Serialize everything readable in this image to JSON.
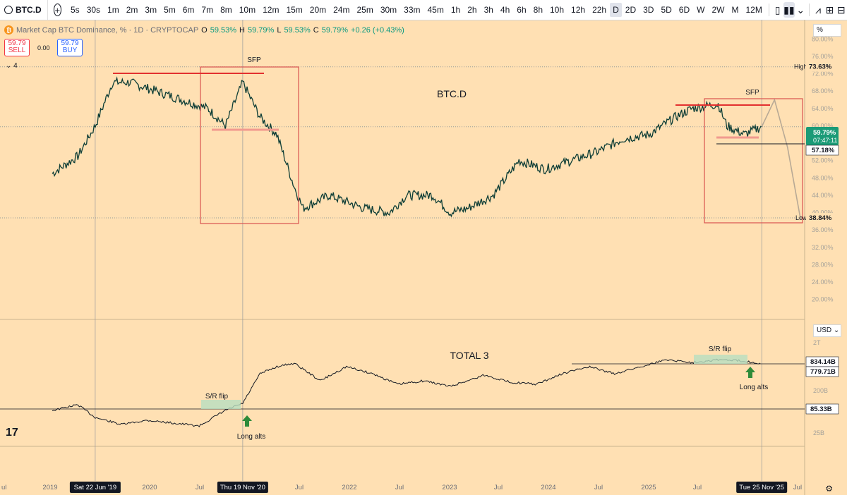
{
  "toolbar": {
    "symbol": "BTC.D",
    "intervals": [
      "5s",
      "30s",
      "1m",
      "2m",
      "3m",
      "5m",
      "6m",
      "7m",
      "8m",
      "10m",
      "12m",
      "15m",
      "20m",
      "24m",
      "25m",
      "30m",
      "33m",
      "45m",
      "1h",
      "2h",
      "3h",
      "4h",
      "6h",
      "8h",
      "10h",
      "12h",
      "22h",
      "D",
      "2D",
      "3D",
      "5D",
      "6D",
      "W",
      "2W",
      "M",
      "12M"
    ],
    "active_interval": "D"
  },
  "legend": {
    "icon": "₿",
    "title": "Market Cap BTC Dominance, % · 1D · CRYPTOCAP",
    "o_label": "O",
    "o_value": "59.53%",
    "h_label": "H",
    "h_value": "59.79%",
    "l_label": "L",
    "l_value": "59.53%",
    "c_label": "C",
    "c_value": "59.79%",
    "change": "+0.26 (+0.43%)"
  },
  "trade": {
    "sell_price": "59.79",
    "sell_label": "SELL",
    "buy_price": "59.79",
    "buy_label": "BUY",
    "spread": "0.00",
    "indicators_collapsed": "4"
  },
  "scale_selectors": {
    "percent": "%",
    "currency": "USD"
  },
  "chart_data": [
    {
      "type": "line",
      "symbol": "BTC.D",
      "annotation_label": "BTC.D",
      "unit": "%",
      "x": [
        "2019-01",
        "2019-04",
        "2019-06",
        "2019-08",
        "2019-10",
        "2020-01",
        "2020-04",
        "2020-07",
        "2020-09",
        "2020-11",
        "2021-01",
        "2021-03",
        "2021-05",
        "2021-06",
        "2021-09",
        "2022-01",
        "2022-04",
        "2022-06",
        "2022-09",
        "2022-11",
        "2023-01",
        "2023-04",
        "2023-07",
        "2023-10",
        "2024-01",
        "2024-04",
        "2024-07",
        "2024-10",
        "2025-01",
        "2025-03",
        "2025-06",
        "2025-07",
        "2025-09",
        "2025-11"
      ],
      "y": [
        49,
        53,
        60,
        70,
        70,
        68,
        66,
        64,
        60,
        70,
        62,
        58,
        46,
        41,
        44,
        41,
        40,
        44,
        44,
        40,
        41,
        44,
        52,
        50,
        52,
        54,
        57,
        58,
        62,
        64,
        65,
        60,
        58,
        59.8
      ],
      "projection": {
        "x": [
          "2025-11",
          "2025-12",
          "2026-01",
          "2026-02"
        ],
        "y": [
          59.8,
          66,
          55,
          38.5
        ]
      },
      "yticks": [
        "80.00%",
        "76.00%",
        "72.00%",
        "68.00%",
        "64.00%",
        "60.00%",
        "56.00%",
        "52.00%",
        "48.00%",
        "44.00%",
        "40.00%",
        "36.00%",
        "32.00%",
        "28.00%",
        "24.00%",
        "20.00%"
      ],
      "ylim": [
        18,
        82
      ],
      "labels": {
        "high_tag": "High",
        "high_value": "73.63%",
        "low_tag": "Low",
        "low_value": "38.84%",
        "last_value": "59.79%",
        "countdown": "07:47:11",
        "level_value": "57.18%"
      },
      "annotations": [
        "SFP",
        "SFP"
      ]
    },
    {
      "type": "line",
      "symbol": "TOTAL 3",
      "annotation_label": "TOTAL 3",
      "scale": "log",
      "x": [
        "2019-01",
        "2019-04",
        "2019-06",
        "2019-09",
        "2019-12",
        "2020-03",
        "2020-06",
        "2020-09",
        "2020-11",
        "2021-01",
        "2021-03",
        "2021-05",
        "2021-08",
        "2021-11",
        "2022-02",
        "2022-05",
        "2022-08",
        "2022-11",
        "2023-03",
        "2023-06",
        "2023-09",
        "2023-12",
        "2024-03",
        "2024-06",
        "2024-09",
        "2024-12",
        "2025-03",
        "2025-06",
        "2025-09",
        "2025-11"
      ],
      "yticks": [
        "2T",
        "200B",
        "25B"
      ],
      "labels": {
        "upper_level": "834.14B",
        "last_value": "779.71B",
        "lower_level": "85.33B"
      },
      "annotations": [
        "S/R flip",
        "Long alts",
        "S/R flip",
        "Long alts"
      ]
    }
  ],
  "time_axis": {
    "ticks": [
      "ul",
      "2019",
      "2020",
      "Jul",
      "Jul",
      "2022",
      "Jul",
      "2023",
      "Jul",
      "2024",
      "Jul",
      "2025",
      "Jul",
      "Jul"
    ],
    "crosshair_labels": [
      "Sat 22 Jun '19",
      "Thu 19 Nov '20",
      "Tue 25 Nov '25"
    ]
  },
  "colors": {
    "background": "#ffe0b3",
    "price_line": "#0d3d36",
    "red": "#e3302f",
    "green": "#2e8b3a",
    "projection": "#b8a995",
    "last_tag": "#1b9b77"
  }
}
